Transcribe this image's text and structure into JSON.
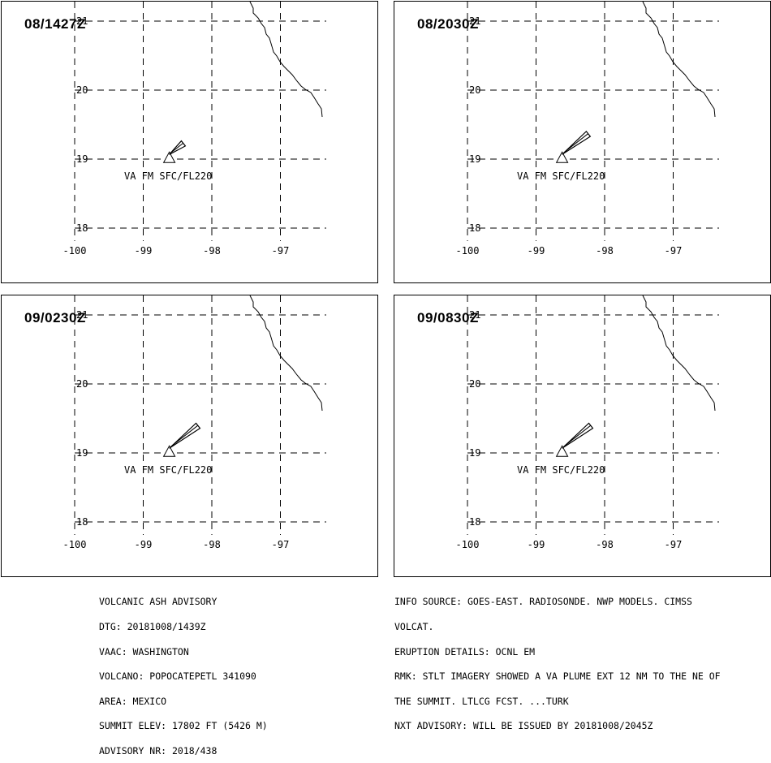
{
  "panels": [
    {
      "time": "08/1427Z",
      "plume_label": "VA FM SFC/FL220",
      "plume_length": 0.22
    },
    {
      "time": "08/2030Z",
      "plume_label": "VA FM SFC/FL220",
      "plume_length": 0.41
    },
    {
      "time": "09/0230Z",
      "plume_label": "VA FM SFC/FL220",
      "plume_length": 0.45
    },
    {
      "time": "09/0830Z",
      "plume_label": "VA FM SFC/FL220",
      "plume_length": 0.45
    }
  ],
  "axes": {
    "lon_ticks": [
      "-100",
      "-99",
      "-98",
      "-97"
    ],
    "lat_ticks": [
      "21",
      "20",
      "19",
      "18"
    ]
  },
  "volcano": {
    "lon": -98.62,
    "lat": 19.02
  },
  "colors": {
    "line": "#000000",
    "background": "#ffffff"
  },
  "advisory": {
    "header": "VOLCANIC ASH ADVISORY",
    "dtg": "DTG: 20181008/1439Z",
    "vaac": "VAAC: WASHINGTON",
    "volcano": "VOLCANO: POPOCATEPETL 341090",
    "area": "AREA: MEXICO",
    "summit_elev": "SUMMIT ELEV: 17802 FT (5426 M)",
    "advisory_nr": "ADVISORY NR: 2018/438"
  },
  "remarks": {
    "info_source": "INFO SOURCE: GOES-EAST. RADIOSONDE. NWP MODELS. CIMSS",
    "info_source_2": "VOLCAT.",
    "eruption_details": "ERUPTION DETAILS: OCNL EM",
    "rmk_1": "RMK: STLT IMAGERY SHOWED A VA PLUME EXT 12 NM TO THE NE OF",
    "rmk_2": "THE SUMMIT. LTLCG FCST. ...TURK",
    "next_advisory": "NXT ADVISORY: WILL BE ISSUED BY 20181008/2045Z"
  }
}
